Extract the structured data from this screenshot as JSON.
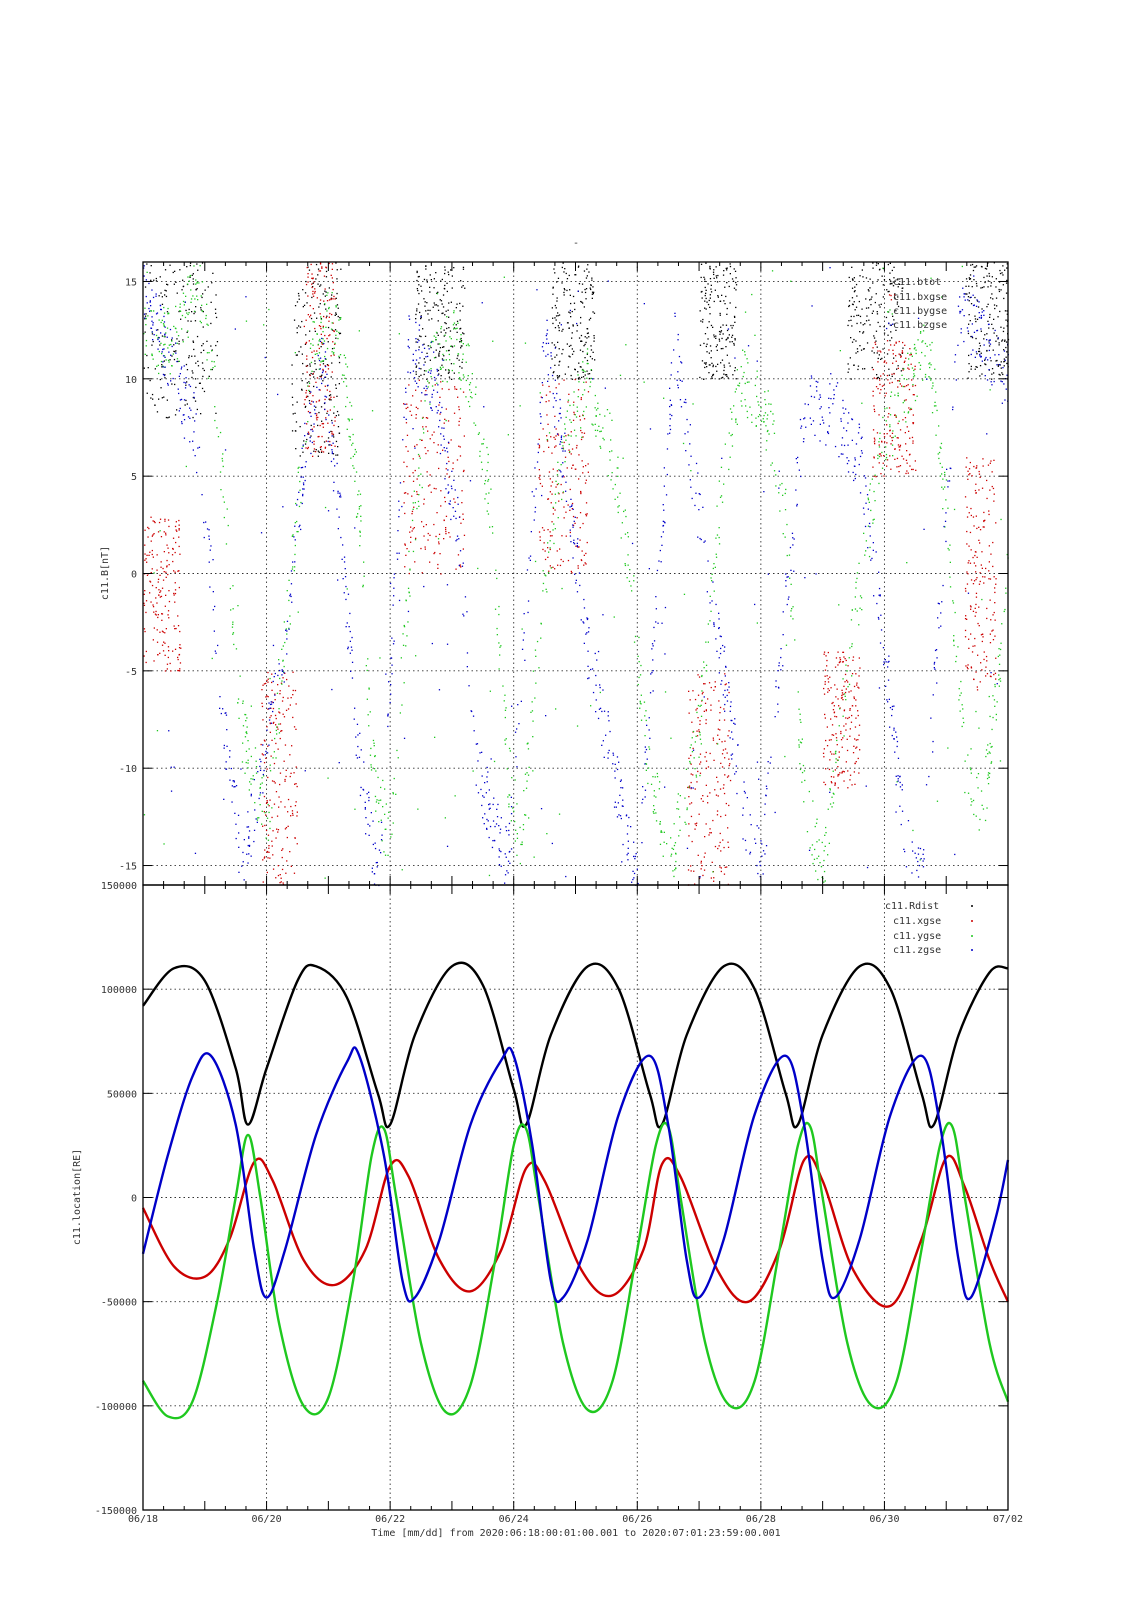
{
  "figure": {
    "title": "-",
    "footer": "Time [mm/dd]  from 2020:06:18:00:01:00.001  to  2020:07:01:23:59:00.001"
  },
  "colors": {
    "black": "#000000",
    "red": "#cc0000",
    "green": "#1fc81f",
    "blue": "#0000c8",
    "grid": "#333333"
  },
  "chart_data": [
    {
      "type": "scatter",
      "ylabel": "c11.B[nT]",
      "ylim": [
        -16,
        16
      ],
      "yticks": [
        15,
        10,
        5,
        0,
        -5,
        -10,
        -15
      ],
      "grid": true,
      "legend": "top-right",
      "series": [
        {
          "name": "c11.btot",
          "color": "black",
          "bursts": [
            [
              0.0,
              1.2,
              8,
              16
            ],
            [
              2.4,
              3.2,
              6,
              16
            ],
            [
              4.4,
              5.2,
              10,
              16
            ],
            [
              6.6,
              7.3,
              10,
              16
            ],
            [
              9.0,
              9.6,
              10,
              16
            ],
            [
              11.4,
              12.3,
              10,
              16
            ],
            [
              13.3,
              14.0,
              10,
              16
            ]
          ]
        },
        {
          "name": "c11.bxgse",
          "color": "red",
          "bursts": [
            [
              0.0,
              0.6,
              -5,
              3
            ],
            [
              1.9,
              2.5,
              -16,
              -5
            ],
            [
              2.6,
              3.1,
              6,
              16
            ],
            [
              4.2,
              5.2,
              0,
              10
            ],
            [
              6.4,
              7.2,
              0,
              10
            ],
            [
              8.8,
              9.5,
              -16,
              -5
            ],
            [
              11.0,
              11.6,
              -11,
              -4
            ],
            [
              11.8,
              12.5,
              5,
              12
            ],
            [
              13.3,
              13.8,
              -6,
              6
            ]
          ]
        },
        {
          "name": "c11.bygse",
          "color": "green",
          "points": [
            [
              0.5,
              12
            ],
            [
              0.9,
              15
            ],
            [
              1.2,
              8
            ],
            [
              1.4,
              0
            ],
            [
              1.6,
              -8
            ],
            [
              2.0,
              -13
            ],
            [
              2.4,
              0
            ],
            [
              2.7,
              11
            ],
            [
              3.0,
              13
            ],
            [
              3.2,
              12
            ],
            [
              3.5,
              3
            ],
            [
              3.7,
              -10
            ],
            [
              4.0,
              -14
            ],
            [
              4.3,
              0
            ],
            [
              4.6,
              10
            ],
            [
              5.0,
              12
            ],
            [
              5.3,
              10
            ],
            [
              5.6,
              4
            ],
            [
              5.9,
              -10
            ],
            [
              6.1,
              -14
            ],
            [
              6.5,
              0
            ],
            [
              6.9,
              8
            ],
            [
              7.2,
              10
            ],
            [
              7.6,
              6
            ],
            [
              7.9,
              0
            ],
            [
              8.1,
              -8
            ],
            [
              8.5,
              -15
            ],
            [
              9.0,
              -8
            ],
            [
              9.4,
              6
            ],
            [
              9.7,
              10
            ],
            [
              10.1,
              8
            ],
            [
              10.4,
              3
            ],
            [
              10.7,
              -12
            ],
            [
              11.0,
              -15
            ],
            [
              11.4,
              -5
            ],
            [
              11.9,
              6
            ],
            [
              12.4,
              10
            ],
            [
              12.7,
              12
            ],
            [
              13.0,
              3
            ],
            [
              13.3,
              -10
            ],
            [
              13.6,
              -12
            ],
            [
              14.0,
              0
            ]
          ]
        },
        {
          "name": "c11.bzgse",
          "color": "blue",
          "points": [
            [
              0.0,
              15
            ],
            [
              0.3,
              12
            ],
            [
              0.8,
              8
            ],
            [
              1.1,
              0
            ],
            [
              1.3,
              -8
            ],
            [
              1.6,
              -15
            ],
            [
              2.3,
              -4
            ],
            [
              2.6,
              6
            ],
            [
              2.9,
              11
            ],
            [
              3.2,
              2
            ],
            [
              3.5,
              -10
            ],
            [
              3.8,
              -16
            ],
            [
              4.3,
              12
            ],
            [
              4.7,
              10
            ],
            [
              5.1,
              2
            ],
            [
              5.4,
              -10
            ],
            [
              5.9,
              -15
            ],
            [
              6.5,
              12
            ],
            [
              6.8,
              6
            ],
            [
              7.2,
              -4
            ],
            [
              7.6,
              -10
            ],
            [
              8.0,
              -16
            ],
            [
              8.6,
              12
            ],
            [
              8.9,
              5
            ],
            [
              9.3,
              -3
            ],
            [
              9.7,
              -12
            ],
            [
              10.0,
              -15
            ],
            [
              10.7,
              9
            ],
            [
              11.2,
              8
            ],
            [
              11.6,
              6
            ],
            [
              12.0,
              -4
            ],
            [
              12.3,
              -13
            ],
            [
              12.6,
              -16
            ],
            [
              13.2,
              14
            ],
            [
              13.6,
              12
            ],
            [
              14.0,
              10
            ]
          ]
        }
      ]
    },
    {
      "type": "line",
      "ylabel": "c11.location[RE]",
      "ylim": [
        -150000,
        150000
      ],
      "yticks": [
        150000,
        100000,
        50000,
        0,
        -50000,
        -100000,
        -150000
      ],
      "xlim": [
        0,
        14
      ],
      "xticks": [
        "06/18",
        "06/20",
        "06/22",
        "06/24",
        "06/26",
        "06/28",
        "06/30",
        "07/02"
      ],
      "grid": true,
      "legend": "top-right",
      "series": [
        {
          "name": "c11.Rdist",
          "color": "black",
          "points": [
            [
              0.0,
              92000
            ],
            [
              0.5,
              110000
            ],
            [
              1.0,
              104000
            ],
            [
              1.5,
              62000
            ],
            [
              1.7,
              35000
            ],
            [
              2.0,
              62000
            ],
            [
              2.5,
              104000
            ],
            [
              2.8,
              111000
            ],
            [
              3.3,
              96000
            ],
            [
              3.8,
              50000
            ],
            [
              4.0,
              35000
            ],
            [
              4.4,
              78000
            ],
            [
              5.0,
              111000
            ],
            [
              5.5,
              102000
            ],
            [
              6.0,
              52000
            ],
            [
              6.2,
              35000
            ],
            [
              6.6,
              78000
            ],
            [
              7.2,
              111000
            ],
            [
              7.7,
              100000
            ],
            [
              8.2,
              50000
            ],
            [
              8.4,
              35000
            ],
            [
              8.8,
              78000
            ],
            [
              9.4,
              111000
            ],
            [
              9.9,
              100000
            ],
            [
              10.4,
              50000
            ],
            [
              10.6,
              35000
            ],
            [
              11.0,
              78000
            ],
            [
              11.6,
              111000
            ],
            [
              12.1,
              100000
            ],
            [
              12.6,
              50000
            ],
            [
              12.8,
              35000
            ],
            [
              13.2,
              78000
            ],
            [
              13.7,
              108000
            ],
            [
              14.0,
              110000
            ]
          ]
        },
        {
          "name": "c11.xgse",
          "color": "red",
          "points": [
            [
              0.0,
              -5000
            ],
            [
              0.5,
              -33000
            ],
            [
              1.0,
              -38000
            ],
            [
              1.4,
              -20000
            ],
            [
              1.8,
              17000
            ],
            [
              2.1,
              8000
            ],
            [
              2.6,
              -30000
            ],
            [
              3.1,
              -42000
            ],
            [
              3.6,
              -25000
            ],
            [
              4.0,
              15000
            ],
            [
              4.3,
              10000
            ],
            [
              4.8,
              -30000
            ],
            [
              5.3,
              -45000
            ],
            [
              5.8,
              -25000
            ],
            [
              6.2,
              14000
            ],
            [
              6.5,
              8000
            ],
            [
              7.1,
              -35000
            ],
            [
              7.6,
              -47000
            ],
            [
              8.1,
              -25000
            ],
            [
              8.4,
              16000
            ],
            [
              8.7,
              10000
            ],
            [
              9.3,
              -35000
            ],
            [
              9.8,
              -50000
            ],
            [
              10.3,
              -25000
            ],
            [
              10.7,
              18000
            ],
            [
              11.0,
              8000
            ],
            [
              11.5,
              -35000
            ],
            [
              12.1,
              -52000
            ],
            [
              12.6,
              -20000
            ],
            [
              13.0,
              19000
            ],
            [
              13.3,
              5000
            ],
            [
              13.7,
              -30000
            ],
            [
              14.0,
              -50000
            ]
          ]
        },
        {
          "name": "c11.ygse",
          "color": "green",
          "points": [
            [
              0.0,
              -88000
            ],
            [
              0.4,
              -105000
            ],
            [
              0.8,
              -98000
            ],
            [
              1.2,
              -50000
            ],
            [
              1.5,
              0
            ],
            [
              1.7,
              30000
            ],
            [
              1.9,
              0
            ],
            [
              2.2,
              -60000
            ],
            [
              2.6,
              -100000
            ],
            [
              3.0,
              -96000
            ],
            [
              3.4,
              -40000
            ],
            [
              3.7,
              20000
            ],
            [
              3.9,
              33000
            ],
            [
              4.1,
              0
            ],
            [
              4.5,
              -70000
            ],
            [
              4.9,
              -103000
            ],
            [
              5.3,
              -90000
            ],
            [
              5.7,
              -30000
            ],
            [
              6.0,
              25000
            ],
            [
              6.2,
              33000
            ],
            [
              6.4,
              0
            ],
            [
              6.8,
              -70000
            ],
            [
              7.2,
              -102000
            ],
            [
              7.6,
              -88000
            ],
            [
              8.0,
              -25000
            ],
            [
              8.3,
              25000
            ],
            [
              8.5,
              34000
            ],
            [
              8.7,
              0
            ],
            [
              9.1,
              -70000
            ],
            [
              9.5,
              -100000
            ],
            [
              9.9,
              -88000
            ],
            [
              10.3,
              -25000
            ],
            [
              10.6,
              25000
            ],
            [
              10.8,
              34000
            ],
            [
              11.0,
              0
            ],
            [
              11.4,
              -70000
            ],
            [
              11.8,
              -100000
            ],
            [
              12.2,
              -88000
            ],
            [
              12.6,
              -25000
            ],
            [
              12.9,
              25000
            ],
            [
              13.1,
              34000
            ],
            [
              13.3,
              0
            ],
            [
              13.7,
              -70000
            ],
            [
              14.0,
              -98000
            ]
          ]
        },
        {
          "name": "c11.zgse",
          "color": "blue",
          "points": [
            [
              0.0,
              -27000
            ],
            [
              0.4,
              20000
            ],
            [
              0.8,
              58000
            ],
            [
              1.1,
              68000
            ],
            [
              1.5,
              35000
            ],
            [
              1.8,
              -25000
            ],
            [
              2.0,
              -48000
            ],
            [
              2.3,
              -25000
            ],
            [
              2.8,
              30000
            ],
            [
              3.3,
              65000
            ],
            [
              3.5,
              68000
            ],
            [
              3.9,
              20000
            ],
            [
              4.2,
              -40000
            ],
            [
              4.4,
              -48000
            ],
            [
              4.8,
              -20000
            ],
            [
              5.3,
              35000
            ],
            [
              5.8,
              66000
            ],
            [
              6.0,
              68000
            ],
            [
              6.3,
              25000
            ],
            [
              6.6,
              -40000
            ],
            [
              6.8,
              -48000
            ],
            [
              7.2,
              -20000
            ],
            [
              7.7,
              40000
            ],
            [
              8.2,
              68000
            ],
            [
              8.5,
              35000
            ],
            [
              8.8,
              -30000
            ],
            [
              9.0,
              -48000
            ],
            [
              9.4,
              -20000
            ],
            [
              9.9,
              40000
            ],
            [
              10.4,
              68000
            ],
            [
              10.7,
              35000
            ],
            [
              11.0,
              -30000
            ],
            [
              11.2,
              -48000
            ],
            [
              11.6,
              -20000
            ],
            [
              12.1,
              40000
            ],
            [
              12.6,
              68000
            ],
            [
              12.9,
              35000
            ],
            [
              13.2,
              -30000
            ],
            [
              13.4,
              -48000
            ],
            [
              13.8,
              -10000
            ],
            [
              14.0,
              18000
            ]
          ]
        }
      ]
    }
  ]
}
